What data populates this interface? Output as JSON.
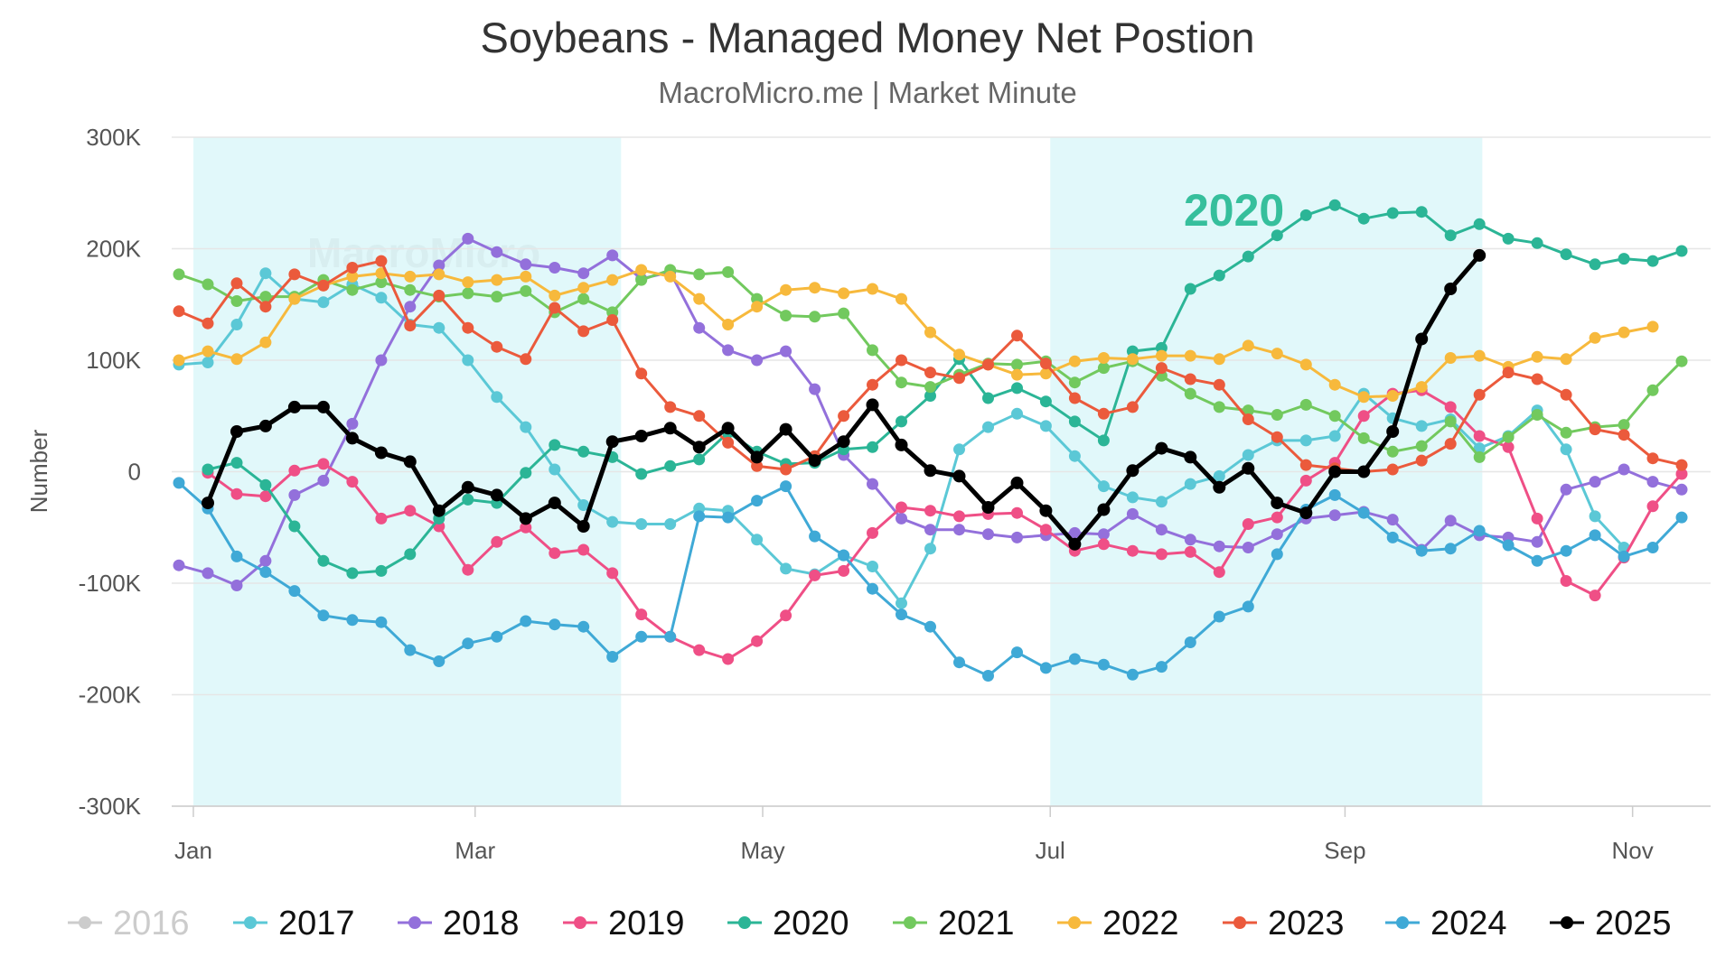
{
  "chart_data": {
    "type": "line",
    "title": "Soybeans - Managed Money Net Postion",
    "subtitle": "MacroMicro.me | Market Minute",
    "ylabel": "Number",
    "xlabel": "",
    "ylim": [
      -300000,
      300000
    ],
    "y_ticks": [
      {
        "value": 300000,
        "label": "300K"
      },
      {
        "value": 200000,
        "label": "200K"
      },
      {
        "value": 100000,
        "label": "100K"
      },
      {
        "value": 0,
        "label": "0"
      },
      {
        "value": -100000,
        "label": "-100K"
      },
      {
        "value": -200000,
        "label": "-200K"
      },
      {
        "value": -300000,
        "label": "-300K"
      }
    ],
    "x_unit": "week",
    "x_ticks": [
      {
        "week": 1,
        "label": "Jan"
      },
      {
        "week": 10.75,
        "label": "Mar"
      },
      {
        "week": 20.7,
        "label": "May"
      },
      {
        "week": 30.65,
        "label": "Jul"
      },
      {
        "week": 40.85,
        "label": "Sep"
      },
      {
        "week": 50.8,
        "label": "Nov"
      }
    ],
    "shaded_bands": [
      {
        "from_week": 1,
        "to_week": 15.8
      },
      {
        "from_week": 30.65,
        "to_week": 45.6
      }
    ],
    "annotation": {
      "text": "2020",
      "color": "#36bf9c"
    },
    "watermark": "MacroMicro",
    "legend_position": "bottom",
    "series": [
      {
        "name": "2016",
        "color": "#cccccc",
        "visible": false,
        "x_start": 0.5,
        "values": []
      },
      {
        "name": "2017",
        "color": "#5bc8d6",
        "visible": true,
        "x_start": 0.5,
        "values": [
          96000,
          98000,
          132000,
          178000,
          155000,
          152000,
          168000,
          156000,
          132000,
          129000,
          100000,
          67000,
          40000,
          2000,
          -30000,
          -45000,
          -47000,
          -47000,
          -33000,
          -35000,
          -61000,
          -87000,
          -92000,
          -75000,
          -85000,
          -118000,
          -69000,
          20000,
          40000,
          52000,
          41000,
          14000,
          -13000,
          -23000,
          -27000,
          -11000,
          -4000,
          15000,
          28000,
          28000,
          32000,
          70000,
          48000,
          41000,
          47000,
          21000,
          32000,
          55000,
          20000,
          -40000,
          -68000
        ]
      },
      {
        "name": "2018",
        "color": "#9370db",
        "visible": true,
        "x_start": 0.5,
        "values": [
          -84000,
          -91000,
          -102000,
          -80000,
          -21000,
          -8000,
          43000,
          100000,
          148000,
          185000,
          209000,
          197000,
          186000,
          183000,
          178000,
          194000,
          173000,
          179000,
          129000,
          109000,
          100000,
          108000,
          74000,
          15000,
          -11000,
          -42000,
          -52000,
          -52000,
          -56000,
          -59000,
          -57000,
          -55000,
          -56000,
          -38000,
          -52000,
          -61000,
          -67000,
          -68000,
          -56000,
          -42000,
          -39000,
          -36000,
          -43000,
          -70000,
          -44000,
          -57000,
          -59000,
          -63000,
          -16000,
          -9000,
          2000,
          -9000,
          -16000
        ]
      },
      {
        "name": "2019",
        "color": "#ef4f86",
        "visible": true,
        "x_start": 1.5,
        "values": [
          -1000,
          -20000,
          -22000,
          1000,
          7000,
          -9000,
          -42000,
          -35000,
          -49000,
          -88000,
          -63000,
          -50000,
          -73000,
          -70000,
          -91000,
          -128000,
          -148000,
          -160000,
          -168000,
          -152000,
          -129000,
          -93000,
          -89000,
          -55000,
          -32000,
          -35000,
          -40000,
          -38000,
          -37000,
          -52000,
          -71000,
          -65000,
          -71000,
          -74000,
          -72000,
          -90000,
          -47000,
          -41000,
          -8000,
          8000,
          50000,
          70000,
          73000,
          58000,
          32000,
          22000,
          -42000,
          -98000,
          -111000,
          -77000,
          -31000,
          -2000
        ]
      },
      {
        "name": "2020",
        "color": "#2bb596",
        "visible": true,
        "x_start": 1.5,
        "values": [
          2000,
          8000,
          -12000,
          -49000,
          -80000,
          -91000,
          -89000,
          -74000,
          -42000,
          -25000,
          -28000,
          -1000,
          24000,
          18000,
          13000,
          -2000,
          5000,
          11000,
          35000,
          18000,
          7000,
          8000,
          20000,
          22000,
          45000,
          68000,
          101000,
          66000,
          75000,
          63000,
          45000,
          28000,
          108000,
          111000,
          164000,
          176000,
          193000,
          212000,
          230000,
          239000,
          227000,
          232000,
          233000,
          212000,
          222000,
          209000,
          205000,
          195000,
          186000,
          191000,
          189000,
          198000
        ]
      },
      {
        "name": "2021",
        "color": "#72c95e",
        "visible": true,
        "x_start": 0.5,
        "values": [
          177000,
          168000,
          153000,
          157000,
          157000,
          172000,
          163000,
          170000,
          163000,
          157000,
          160000,
          157000,
          162000,
          143000,
          155000,
          143000,
          172000,
          181000,
          177000,
          179000,
          155000,
          140000,
          139000,
          142000,
          109000,
          80000,
          76000,
          87000,
          97000,
          96000,
          99000,
          80000,
          93000,
          99000,
          86000,
          70000,
          58000,
          55000,
          51000,
          60000,
          50000,
          30000,
          18000,
          23000,
          45000,
          13000,
          31000,
          51000,
          35000,
          40000,
          42000,
          73000,
          99000
        ]
      },
      {
        "name": "2022",
        "color": "#f7b93c",
        "visible": true,
        "x_start": 0.5,
        "values": [
          100000,
          108000,
          101000,
          116000,
          155000,
          167000,
          175000,
          178000,
          175000,
          177000,
          170000,
          172000,
          175000,
          158000,
          165000,
          172000,
          181000,
          175000,
          155000,
          132000,
          148000,
          163000,
          165000,
          160000,
          164000,
          155000,
          125000,
          105000,
          96000,
          87000,
          88000,
          99000,
          102000,
          101000,
          104000,
          104000,
          101000,
          113000,
          106000,
          96000,
          78000,
          67000,
          68000,
          76000,
          102000,
          104000,
          94000,
          103000,
          101000,
          120000,
          125000,
          130000
        ]
      },
      {
        "name": "2023",
        "color": "#eb5a3c",
        "visible": true,
        "x_start": 0.5,
        "values": [
          144000,
          133000,
          169000,
          148000,
          177000,
          167000,
          183000,
          189000,
          131000,
          158000,
          129000,
          112000,
          101000,
          147000,
          126000,
          136000,
          88000,
          58000,
          50000,
          26000,
          5000,
          2000,
          14000,
          50000,
          78000,
          100000,
          89000,
          84000,
          96000,
          122000,
          97000,
          66000,
          52000,
          58000,
          93000,
          83000,
          78000,
          47000,
          31000,
          6000,
          3000,
          0,
          2000,
          10000,
          25000,
          69000,
          89000,
          83000,
          69000,
          38000,
          33000,
          12000,
          6000
        ]
      },
      {
        "name": "2024",
        "color": "#3fa9d6",
        "visible": true,
        "x_start": 0.5,
        "values": [
          -10000,
          -33000,
          -76000,
          -90000,
          -107000,
          -129000,
          -133000,
          -135000,
          -160000,
          -170000,
          -154000,
          -148000,
          -134000,
          -137000,
          -139000,
          -166000,
          -148000,
          -148000,
          -40000,
          -41000,
          -26000,
          -13000,
          -58000,
          -75000,
          -105000,
          -128000,
          -139000,
          -171000,
          -183000,
          -162000,
          -176000,
          -168000,
          -173000,
          -182000,
          -175000,
          -153000,
          -130000,
          -121000,
          -74000,
          -34000,
          -21000,
          -37000,
          -59000,
          -71000,
          -69000,
          -53000,
          -66000,
          -80000,
          -71000,
          -57000,
          -76000,
          -68000,
          -41000
        ]
      },
      {
        "name": "2025",
        "color": "#000000",
        "visible": true,
        "x_start": 1.5,
        "values": [
          -28000,
          36000,
          41000,
          58000,
          58000,
          30000,
          17000,
          9000,
          -35000,
          -14000,
          -21000,
          -42000,
          -28000,
          -49000,
          27000,
          32000,
          39000,
          22000,
          39000,
          13000,
          38000,
          10000,
          27000,
          60000,
          24000,
          1000,
          -4000,
          -32000,
          -10000,
          -35000,
          -65000,
          -34000,
          1000,
          21000,
          13000,
          -14000,
          3000,
          -28000,
          -37000,
          0,
          0,
          36000,
          119000,
          164000,
          194000
        ]
      }
    ]
  }
}
